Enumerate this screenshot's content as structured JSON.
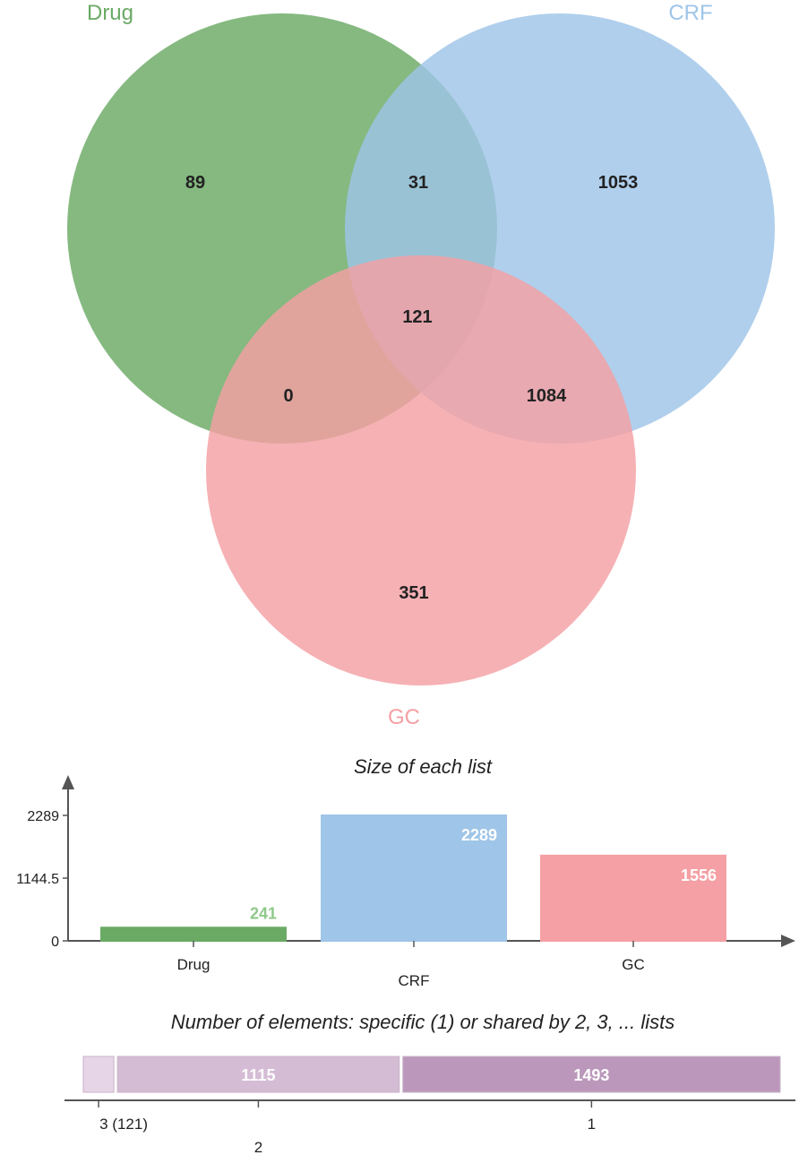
{
  "chart_data": [
    {
      "type": "venn",
      "sets": [
        {
          "name": "Drug",
          "color": "#6aaa64"
        },
        {
          "name": "CRF",
          "color": "#9fc5e8"
        },
        {
          "name": "GC",
          "color": "#f4a0a4"
        }
      ],
      "regions": [
        {
          "sets": [
            "Drug"
          ],
          "value": 89
        },
        {
          "sets": [
            "Drug",
            "CRF"
          ],
          "value": 31
        },
        {
          "sets": [
            "CRF"
          ],
          "value": 1053
        },
        {
          "sets": [
            "Drug",
            "CRF",
            "GC"
          ],
          "value": 121
        },
        {
          "sets": [
            "Drug",
            "GC"
          ],
          "value": 0
        },
        {
          "sets": [
            "CRF",
            "GC"
          ],
          "value": 1084
        },
        {
          "sets": [
            "GC"
          ],
          "value": 351
        }
      ]
    },
    {
      "type": "bar",
      "title": "Size of each list",
      "categories": [
        "Drug",
        "CRF",
        "GC"
      ],
      "values": [
        241,
        2289,
        1556
      ],
      "colors": [
        "#6aaa64",
        "#9fc5e8",
        "#f4a0a4"
      ],
      "value_label_colors": [
        "#8fc98a",
        "#ffffff",
        "#ffffff"
      ],
      "yticks": [
        "0",
        "1144.5",
        "2289"
      ],
      "ylim": [
        0,
        2289
      ]
    },
    {
      "type": "bar",
      "orientation": "stacked-horizontal",
      "title": "Number of elements: specific (1) or shared by 2, 3, ... lists",
      "categories": [
        "3",
        "2",
        "1"
      ],
      "values": [
        121,
        1115,
        1493
      ],
      "segment_labels": [
        "",
        "1115",
        "1493"
      ],
      "tick_labels": [
        "3 (121)",
        "2",
        "1"
      ],
      "colors": [
        "#e6d5e6",
        "#d5bcd5",
        "#bb98bb"
      ]
    }
  ]
}
